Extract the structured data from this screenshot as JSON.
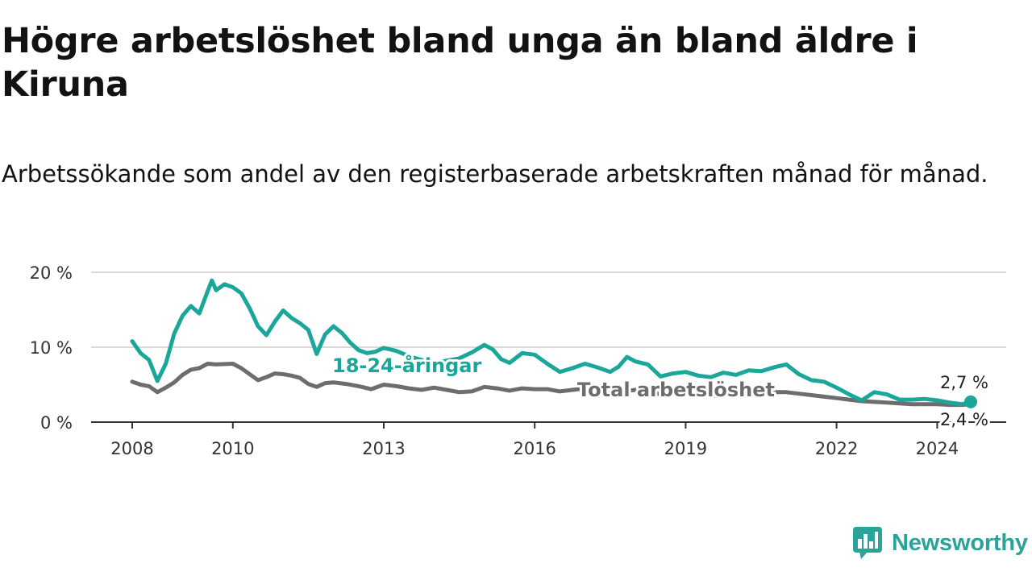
{
  "title": "Högre arbetslöshet bland unga än bland äldre i Kiruna",
  "subtitle": "Arbetssökande som andel av den registerbaserade arbetskraften månad för månad.",
  "brand": "Newsworthy",
  "colors": {
    "youth": "#1aa79a",
    "total": "#6d6d70",
    "grid": "#d9d9d9",
    "axis": "#333333",
    "brand": "#2aa398"
  },
  "icons": {
    "brand": "bar-chart-speech-bubble-icon"
  },
  "chart_data": {
    "type": "line",
    "x_unit": "date (YYYY-MM)",
    "y_unit": "%",
    "ylim": [
      0,
      20
    ],
    "y_ticks": [
      0,
      10,
      20
    ],
    "y_tick_labels": [
      "0 %",
      "10 %",
      "20 %"
    ],
    "x_ticks": [
      "2008-01",
      "2010-01",
      "2013-01",
      "2016-01",
      "2019-01",
      "2022-01",
      "2024-01"
    ],
    "x_tick_labels": [
      "2008",
      "2010",
      "2013",
      "2016",
      "2019",
      "2022",
      "2024"
    ],
    "grid": "horizontal",
    "series": [
      {
        "name": "18-24-åringar",
        "color": "#1aa79a",
        "end_label": "2,7 %",
        "points": [
          [
            "2008-01",
            10.8
          ],
          [
            "2008-03",
            9.2
          ],
          [
            "2008-05",
            8.3
          ],
          [
            "2008-07",
            5.5
          ],
          [
            "2008-09",
            7.8
          ],
          [
            "2008-11",
            11.8
          ],
          [
            "2009-01",
            14.2
          ],
          [
            "2009-03",
            15.5
          ],
          [
            "2009-05",
            14.5
          ],
          [
            "2009-07",
            17.5
          ],
          [
            "2009-08",
            18.9
          ],
          [
            "2009-09",
            17.6
          ],
          [
            "2009-11",
            18.4
          ],
          [
            "2010-01",
            18.0
          ],
          [
            "2010-03",
            17.2
          ],
          [
            "2010-05",
            15.2
          ],
          [
            "2010-07",
            12.8
          ],
          [
            "2010-09",
            11.6
          ],
          [
            "2010-11",
            13.4
          ],
          [
            "2011-01",
            14.9
          ],
          [
            "2011-03",
            13.9
          ],
          [
            "2011-05",
            13.2
          ],
          [
            "2011-07",
            12.3
          ],
          [
            "2011-09",
            9.1
          ],
          [
            "2011-11",
            11.7
          ],
          [
            "2012-01",
            12.8
          ],
          [
            "2012-03",
            11.9
          ],
          [
            "2012-05",
            10.6
          ],
          [
            "2012-07",
            9.6
          ],
          [
            "2012-09",
            9.2
          ],
          [
            "2012-11",
            9.4
          ],
          [
            "2013-01",
            9.9
          ],
          [
            "2013-04",
            9.5
          ],
          [
            "2013-07",
            8.8
          ],
          [
            "2013-10",
            8.3
          ],
          [
            "2014-01",
            7.9
          ],
          [
            "2014-04",
            8.2
          ],
          [
            "2014-07",
            8.5
          ],
          [
            "2014-10",
            9.3
          ],
          [
            "2015-01",
            10.3
          ],
          [
            "2015-03",
            9.7
          ],
          [
            "2015-05",
            8.4
          ],
          [
            "2015-07",
            7.9
          ],
          [
            "2015-10",
            9.2
          ],
          [
            "2016-01",
            9.0
          ],
          [
            "2016-04",
            7.8
          ],
          [
            "2016-07",
            6.7
          ],
          [
            "2016-10",
            7.2
          ],
          [
            "2017-01",
            7.8
          ],
          [
            "2017-04",
            7.3
          ],
          [
            "2017-07",
            6.7
          ],
          [
            "2017-09",
            7.4
          ],
          [
            "2017-11",
            8.7
          ],
          [
            "2018-01",
            8.1
          ],
          [
            "2018-04",
            7.7
          ],
          [
            "2018-07",
            6.1
          ],
          [
            "2018-10",
            6.5
          ],
          [
            "2019-01",
            6.7
          ],
          [
            "2019-04",
            6.2
          ],
          [
            "2019-07",
            6.0
          ],
          [
            "2019-10",
            6.6
          ],
          [
            "2020-01",
            6.3
          ],
          [
            "2020-04",
            6.9
          ],
          [
            "2020-07",
            6.8
          ],
          [
            "2020-10",
            7.3
          ],
          [
            "2021-01",
            7.7
          ],
          [
            "2021-04",
            6.4
          ],
          [
            "2021-07",
            5.6
          ],
          [
            "2021-10",
            5.4
          ],
          [
            "2022-01",
            4.6
          ],
          [
            "2022-04",
            3.7
          ],
          [
            "2022-07",
            2.9
          ],
          [
            "2022-10",
            4.0
          ],
          [
            "2023-01",
            3.7
          ],
          [
            "2023-04",
            3.0
          ],
          [
            "2023-07",
            3.0
          ],
          [
            "2023-10",
            3.1
          ],
          [
            "2024-01",
            2.9
          ],
          [
            "2024-04",
            2.6
          ],
          [
            "2024-07",
            2.4
          ],
          [
            "2024-09",
            2.7
          ]
        ]
      },
      {
        "name": "Total arbetslöshet",
        "color": "#6d6d70",
        "end_label": "2,4 %",
        "points": [
          [
            "2008-01",
            5.4
          ],
          [
            "2008-03",
            5.0
          ],
          [
            "2008-05",
            4.8
          ],
          [
            "2008-07",
            4.0
          ],
          [
            "2008-09",
            4.6
          ],
          [
            "2008-11",
            5.3
          ],
          [
            "2009-01",
            6.3
          ],
          [
            "2009-03",
            7.0
          ],
          [
            "2009-05",
            7.2
          ],
          [
            "2009-07",
            7.8
          ],
          [
            "2009-09",
            7.7
          ],
          [
            "2010-01",
            7.8
          ],
          [
            "2010-03",
            7.2
          ],
          [
            "2010-05",
            6.4
          ],
          [
            "2010-07",
            5.6
          ],
          [
            "2010-09",
            6.0
          ],
          [
            "2010-11",
            6.5
          ],
          [
            "2011-01",
            6.4
          ],
          [
            "2011-03",
            6.2
          ],
          [
            "2011-05",
            5.9
          ],
          [
            "2011-07",
            5.1
          ],
          [
            "2011-09",
            4.7
          ],
          [
            "2011-11",
            5.2
          ],
          [
            "2012-01",
            5.3
          ],
          [
            "2012-04",
            5.1
          ],
          [
            "2012-07",
            4.8
          ],
          [
            "2012-10",
            4.4
          ],
          [
            "2013-01",
            5.0
          ],
          [
            "2013-04",
            4.8
          ],
          [
            "2013-07",
            4.5
          ],
          [
            "2013-10",
            4.3
          ],
          [
            "2014-01",
            4.6
          ],
          [
            "2014-04",
            4.3
          ],
          [
            "2014-07",
            4.0
          ],
          [
            "2014-10",
            4.1
          ],
          [
            "2015-01",
            4.7
          ],
          [
            "2015-04",
            4.5
          ],
          [
            "2015-07",
            4.2
          ],
          [
            "2015-10",
            4.5
          ],
          [
            "2016-01",
            4.4
          ],
          [
            "2016-04",
            4.4
          ],
          [
            "2016-07",
            4.1
          ],
          [
            "2016-10",
            4.3
          ],
          [
            "2017-01",
            4.5
          ],
          [
            "2017-04",
            4.3
          ],
          [
            "2017-07",
            3.9
          ],
          [
            "2017-10",
            4.1
          ],
          [
            "2018-01",
            4.3
          ],
          [
            "2018-04",
            4.1
          ],
          [
            "2018-07",
            3.7
          ],
          [
            "2018-10",
            3.8
          ],
          [
            "2019-01",
            3.9
          ],
          [
            "2019-04",
            3.7
          ],
          [
            "2019-07",
            3.5
          ],
          [
            "2019-10",
            3.6
          ],
          [
            "2020-01",
            3.7
          ],
          [
            "2020-04",
            3.9
          ],
          [
            "2020-07",
            4.0
          ],
          [
            "2020-10",
            4.0
          ],
          [
            "2021-01",
            4.0
          ],
          [
            "2021-04",
            3.8
          ],
          [
            "2021-07",
            3.6
          ],
          [
            "2021-10",
            3.4
          ],
          [
            "2022-01",
            3.2
          ],
          [
            "2022-04",
            3.0
          ],
          [
            "2022-07",
            2.8
          ],
          [
            "2022-10",
            2.7
          ],
          [
            "2023-01",
            2.6
          ],
          [
            "2023-04",
            2.5
          ],
          [
            "2023-07",
            2.4
          ],
          [
            "2023-10",
            2.4
          ],
          [
            "2024-01",
            2.4
          ],
          [
            "2024-04",
            2.3
          ],
          [
            "2024-07",
            2.3
          ],
          [
            "2024-09",
            2.4
          ]
        ]
      }
    ]
  }
}
